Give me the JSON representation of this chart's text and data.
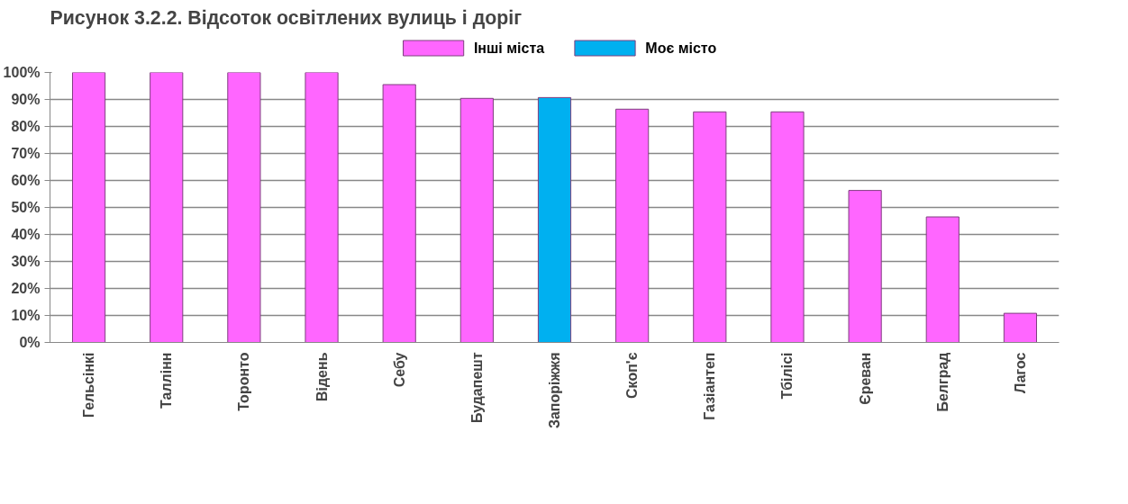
{
  "chart_data": {
    "type": "bar",
    "title": "Рисунок 3.2.2. Відсоток освітлених вулиць і доріг",
    "categories": [
      "Гельсінкі",
      "Таллінн",
      "Торонто",
      "Відень",
      "Себу",
      "Будапешт",
      "Запоріжжя",
      "Скоп'є",
      "Газіантеп",
      "Тбілісі",
      "Єреван",
      "Белград",
      "Лагос"
    ],
    "series": [
      {
        "name": "Інші міста",
        "color": "#ff66ff",
        "values": [
          100,
          100,
          100,
          100,
          95.5,
          90.4,
          null,
          86.4,
          85.4,
          85.4,
          56.3,
          46.5,
          10.8
        ]
      },
      {
        "name": "Моє місто",
        "color": "#00b0f0",
        "values": [
          null,
          null,
          null,
          null,
          null,
          null,
          90.7,
          null,
          null,
          null,
          null,
          null,
          null
        ]
      }
    ],
    "ylim": [
      0,
      100
    ],
    "yticks": [
      {
        "value": 0,
        "label": "0%"
      },
      {
        "value": 10,
        "label": "10%"
      },
      {
        "value": 20,
        "label": "20%"
      },
      {
        "value": 30,
        "label": "30%"
      },
      {
        "value": 40,
        "label": "40%"
      },
      {
        "value": 50,
        "label": "50%"
      },
      {
        "value": 60,
        "label": "60%"
      },
      {
        "value": 70,
        "label": "70%"
      },
      {
        "value": 80,
        "label": "80%"
      },
      {
        "value": 90,
        "label": "90%"
      },
      {
        "value": 100,
        "label": "100%"
      }
    ],
    "grid": "y",
    "legend": "top"
  }
}
